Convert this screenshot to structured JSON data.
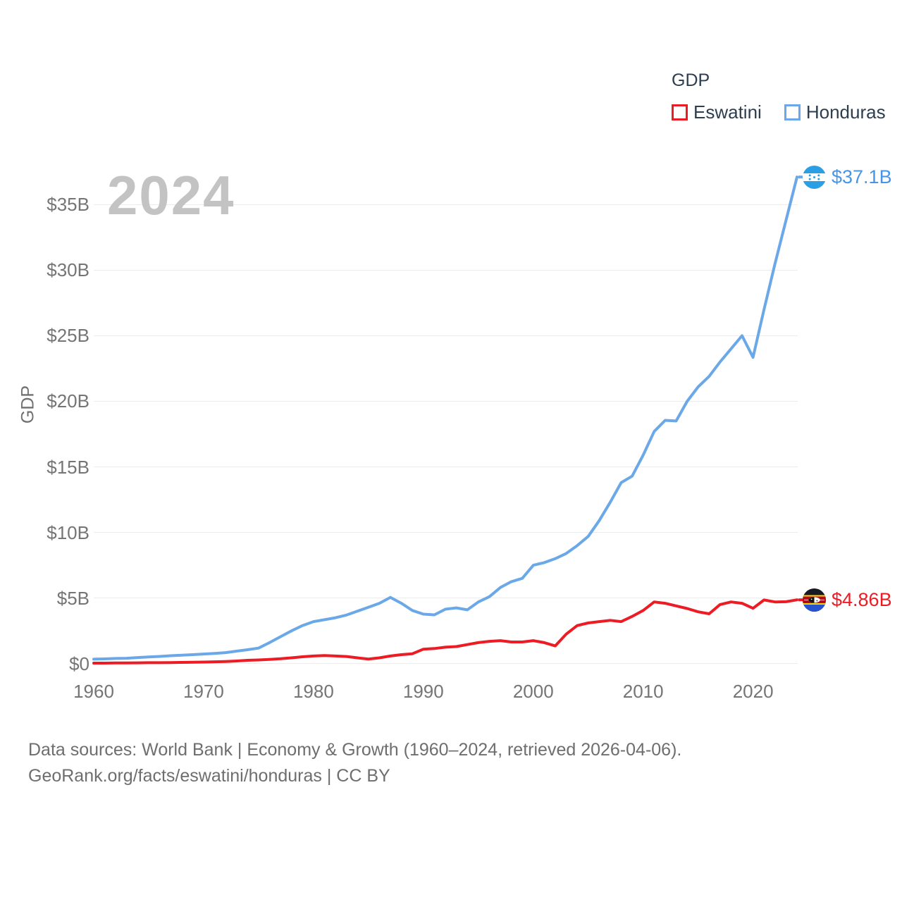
{
  "legend": {
    "title": "GDP",
    "items": [
      {
        "label": "Eswatini",
        "color": "#ed1c24"
      },
      {
        "label": "Honduras",
        "color": "#6aa8e8"
      }
    ]
  },
  "watermark": "2024",
  "y_axis": {
    "label": "GDP",
    "ticks": [
      "$0",
      "$5B",
      "$10B",
      "$15B",
      "$20B",
      "$25B",
      "$30B",
      "$35B"
    ]
  },
  "x_axis": {
    "ticks": [
      "1960",
      "1970",
      "1980",
      "1990",
      "2000",
      "2010",
      "2020"
    ]
  },
  "end_labels": [
    {
      "series": "Honduras",
      "value": "$37.1B",
      "color": "#4596e8"
    },
    {
      "series": "Eswatini",
      "value": "$4.86B",
      "color": "#ed1c24"
    }
  ],
  "footer": {
    "line1": "Data sources: World Bank | Economy & Growth (1960–2024, retrieved 2026-04-06).",
    "line2": "GeoRank.org/facts/eswatini/honduras | CC BY"
  },
  "chart_data": {
    "type": "line",
    "title": "GDP",
    "unit": "billion USD",
    "grid": true,
    "legend_position": "top-right",
    "ylim": [
      0,
      37.5
    ],
    "xlim": [
      1960,
      2024
    ],
    "xtick_values": [
      1960,
      1970,
      1980,
      1990,
      2000,
      2010,
      2020
    ],
    "ytick_values": [
      0,
      5,
      10,
      15,
      20,
      25,
      30,
      35
    ],
    "x": [
      1960,
      1961,
      1962,
      1963,
      1964,
      1965,
      1966,
      1967,
      1968,
      1969,
      1970,
      1971,
      1972,
      1973,
      1974,
      1975,
      1976,
      1977,
      1978,
      1979,
      1980,
      1981,
      1982,
      1983,
      1984,
      1985,
      1986,
      1987,
      1988,
      1989,
      1990,
      1991,
      1992,
      1993,
      1994,
      1995,
      1996,
      1997,
      1998,
      1999,
      2000,
      2001,
      2002,
      2003,
      2004,
      2005,
      2006,
      2007,
      2008,
      2009,
      2010,
      2011,
      2012,
      2013,
      2014,
      2015,
      2016,
      2017,
      2018,
      2019,
      2020,
      2021,
      2022,
      2023,
      2024
    ],
    "series": [
      {
        "name": "Honduras",
        "color": "#6aa8e8",
        "end_label": "$37.1B",
        "values": [
          0.34,
          0.36,
          0.39,
          0.41,
          0.46,
          0.51,
          0.55,
          0.6,
          0.64,
          0.68,
          0.73,
          0.78,
          0.84,
          0.95,
          1.06,
          1.18,
          1.6,
          2.05,
          2.5,
          2.9,
          3.2,
          3.35,
          3.5,
          3.7,
          4.0,
          4.3,
          4.6,
          5.05,
          4.6,
          4.05,
          3.77,
          3.72,
          4.15,
          4.25,
          4.1,
          4.7,
          5.1,
          5.8,
          6.25,
          6.5,
          7.5,
          7.7,
          8.0,
          8.4,
          9.0,
          9.7,
          10.9,
          12.3,
          13.8,
          14.3,
          15.9,
          17.7,
          18.55,
          18.5,
          20.0,
          21.1,
          21.9,
          23.0,
          24.0,
          25.0,
          23.35,
          27.0,
          30.5,
          33.8,
          37.1
        ]
      },
      {
        "name": "Eswatini",
        "color": "#ed1c24",
        "end_label": "$4.86B",
        "values": [
          0.04,
          0.04,
          0.05,
          0.05,
          0.06,
          0.07,
          0.07,
          0.08,
          0.09,
          0.1,
          0.12,
          0.14,
          0.16,
          0.2,
          0.25,
          0.28,
          0.32,
          0.37,
          0.44,
          0.52,
          0.58,
          0.61,
          0.58,
          0.54,
          0.44,
          0.35,
          0.44,
          0.58,
          0.68,
          0.75,
          1.1,
          1.15,
          1.25,
          1.3,
          1.45,
          1.6,
          1.7,
          1.75,
          1.65,
          1.65,
          1.75,
          1.6,
          1.35,
          2.25,
          2.9,
          3.1,
          3.2,
          3.3,
          3.2,
          3.6,
          4.05,
          4.7,
          4.6,
          4.4,
          4.2,
          3.95,
          3.8,
          4.5,
          4.7,
          4.6,
          4.22,
          4.85,
          4.7,
          4.72,
          4.86
        ]
      }
    ]
  }
}
